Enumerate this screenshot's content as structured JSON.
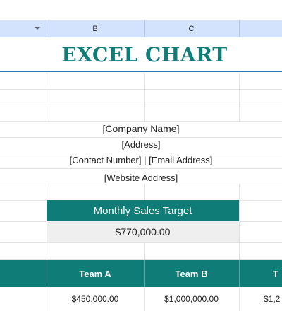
{
  "column_headers": [
    "B",
    "C"
  ],
  "title": "EXCEL CHART",
  "company": {
    "name": "[Company Name]",
    "address": "[Address]",
    "contact": "[Contact Number] | [Email Address]",
    "website": "[Website Address]"
  },
  "sales_target": {
    "label": "Monthly Sales Target",
    "value": "$770,000.00"
  },
  "teams": [
    {
      "label": "Team A",
      "value": "$450,000.00"
    },
    {
      "label": "Team B",
      "value": "$1,000,000.00"
    },
    {
      "label": "T",
      "value": "$1,2"
    }
  ],
  "colors": {
    "accent": "#0f7c78",
    "header_blue": "#d3e3fd",
    "title_rule": "#2e75b6"
  }
}
